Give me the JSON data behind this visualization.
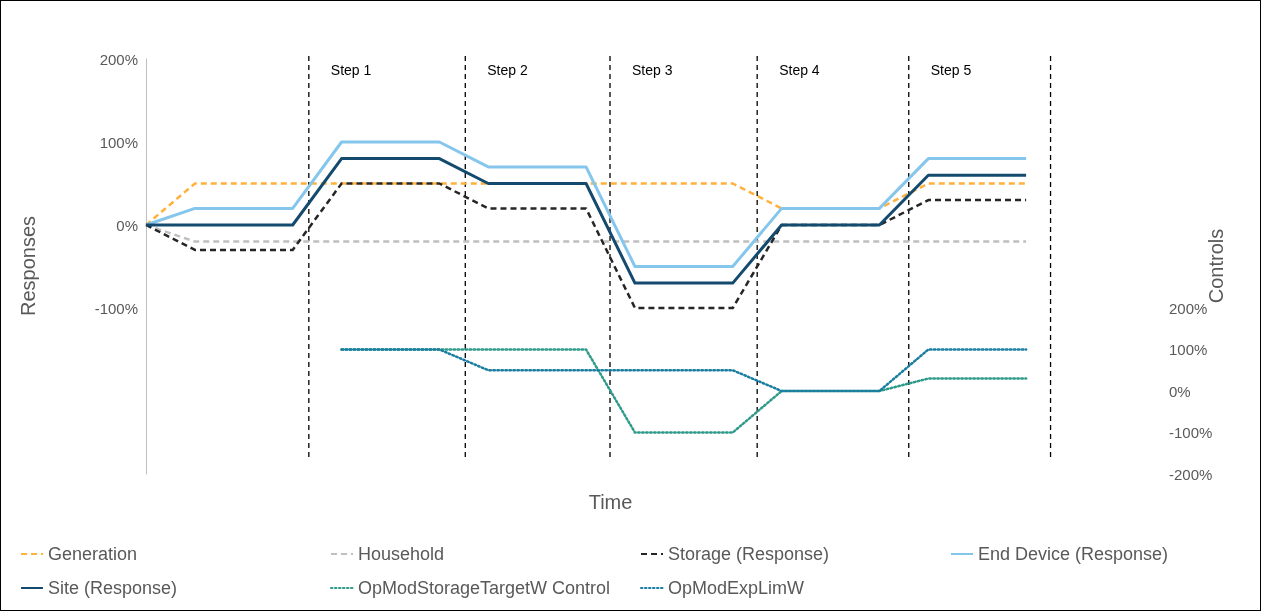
{
  "chart_data": {
    "type": "line",
    "xlabel": "Time",
    "ylabel": "Responses",
    "y2label": "Controls",
    "categories": [
      null,
      null,
      null,
      null,
      null,
      null,
      null,
      null,
      null,
      null,
      null,
      null,
      null,
      null,
      null,
      null,
      null,
      null,
      null,
      null
    ],
    "ylim": [
      -300,
      200
    ],
    "yticks": [
      {
        "value": -100,
        "label": "-100%"
      },
      {
        "value": 0,
        "label": "0%"
      },
      {
        "value": 100,
        "label": "100%"
      },
      {
        "value": 200,
        "label": "200%"
      }
    ],
    "y2lim": [
      -200,
      800
    ],
    "y2ticks": [
      {
        "value": -200,
        "label": "-200%"
      },
      {
        "value": -100,
        "label": "-100%"
      },
      {
        "value": 0,
        "label": "0%"
      },
      {
        "value": 100,
        "label": "100%"
      },
      {
        "value": 200,
        "label": "200%"
      }
    ],
    "grid": false,
    "legend": "bottom",
    "marker": "none",
    "series": [
      {
        "name": "Generation",
        "color": "#ffb13b",
        "line_style": "dashed",
        "values": [
          0,
          50,
          50,
          50,
          50,
          50,
          50,
          50,
          50,
          50,
          50,
          50,
          50,
          20,
          20,
          20,
          50,
          50,
          50,
          null
        ]
      },
      {
        "name": "Household",
        "color": "#bfbfbf",
        "line_style": "dashed",
        "values": [
          0,
          -20,
          -20,
          -20,
          -20,
          -20,
          -20,
          -20,
          -20,
          -20,
          -20,
          -20,
          -20,
          -20,
          -20,
          -20,
          -20,
          -20,
          -20,
          null
        ]
      },
      {
        "name": "Storage (Response)",
        "color": "#262626",
        "line_style": "dashed",
        "values": [
          0,
          -30,
          -30,
          -30,
          50,
          50,
          50,
          20,
          20,
          20,
          -100,
          -100,
          -100,
          0,
          0,
          0,
          30,
          30,
          30,
          null
        ]
      },
      {
        "name": "End Device (Response)",
        "color": "#85c6ec",
        "line_style": "solid",
        "values": [
          0,
          20,
          20,
          20,
          100,
          100,
          100,
          70,
          70,
          70,
          -50,
          -50,
          -50,
          20,
          20,
          20,
          80,
          80,
          80,
          null
        ]
      },
      {
        "name": "Site (Response)",
        "color": "#144a6e",
        "line_style": "solid",
        "values": [
          0,
          0,
          0,
          0,
          80,
          80,
          80,
          50,
          50,
          50,
          -70,
          -70,
          -70,
          0,
          0,
          0,
          60,
          60,
          60,
          null
        ]
      },
      {
        "name": "OpModStorageTargetW Control",
        "color": "#2e9a8a",
        "line_style": "dotted",
        "axis": "y2",
        "values": [
          null,
          null,
          null,
          null,
          100,
          100,
          100,
          100,
          100,
          100,
          -100,
          -100,
          -100,
          0,
          0,
          0,
          30,
          30,
          30,
          null
        ]
      },
      {
        "name": "OpModExpLimW",
        "color": "#1a7ea0",
        "line_style": "dotted",
        "axis": "y2",
        "values": [
          null,
          null,
          null,
          null,
          100,
          100,
          100,
          50,
          50,
          50,
          50,
          50,
          50,
          0,
          0,
          0,
          100,
          100,
          100,
          null
        ]
      }
    ],
    "annotations": [
      "Step 1",
      "Step 2",
      "Step 3",
      "Step 4",
      "Step 5"
    ]
  }
}
